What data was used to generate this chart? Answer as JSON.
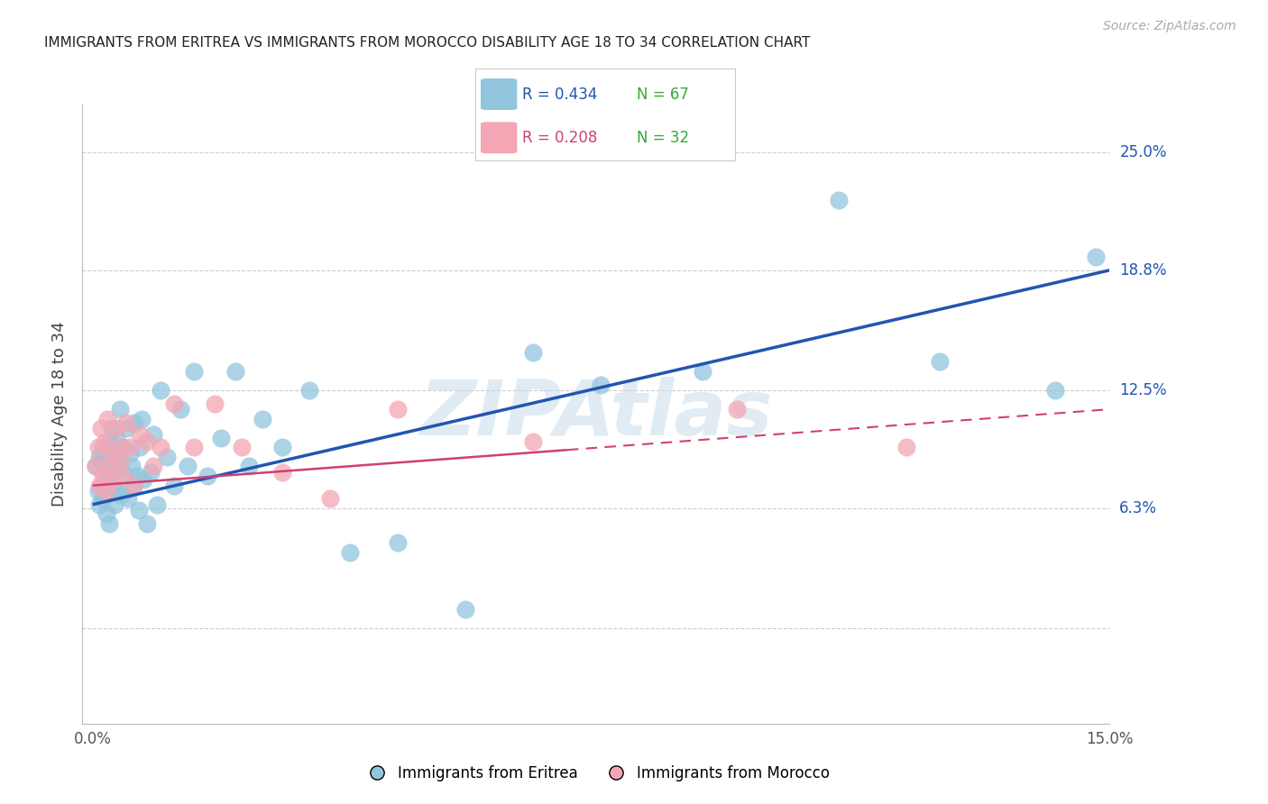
{
  "title": "IMMIGRANTS FROM ERITREA VS IMMIGRANTS FROM MOROCCO DISABILITY AGE 18 TO 34 CORRELATION CHART",
  "source": "Source: ZipAtlas.com",
  "ylabel": "Disability Age 18 to 34",
  "legend_label1": "Immigrants from Eritrea",
  "legend_label2": "Immigrants from Morocco",
  "R1": 0.434,
  "N1": 67,
  "R2": 0.208,
  "N2": 32,
  "color_blue": "#92c5de",
  "color_pink": "#f4a6b4",
  "line_blue": "#2255b0",
  "line_pink": "#d04070",
  "watermark_text": "ZIPAtlas",
  "watermark_color": "#c8dcea",
  "background_color": "#ffffff",
  "ytick_vals": [
    0.0,
    6.3,
    12.5,
    18.8,
    25.0
  ],
  "ytick_right_labels": [
    "",
    "6.3%",
    "12.5%",
    "18.8%",
    "25.0%"
  ],
  "xtick_vals": [
    0.0,
    3.75,
    7.5,
    11.25,
    15.0
  ],
  "xtick_labels": [
    "0.0%",
    "",
    "",
    "",
    "15.0%"
  ],
  "xmin": -0.15,
  "xmax": 15.0,
  "ymin": -5.0,
  "ymax": 27.5,
  "blue_line_x0": 0.0,
  "blue_line_y0": 6.5,
  "blue_line_x1": 15.0,
  "blue_line_y1": 18.8,
  "pink_line_x0": 0.0,
  "pink_line_y0": 7.5,
  "pink_line_x1": 15.0,
  "pink_line_y1": 11.5,
  "pink_solid_end": 7.0,
  "blue_x": [
    0.05,
    0.08,
    0.1,
    0.1,
    0.12,
    0.13,
    0.15,
    0.15,
    0.18,
    0.18,
    0.2,
    0.2,
    0.22,
    0.22,
    0.25,
    0.25,
    0.28,
    0.28,
    0.3,
    0.3,
    0.32,
    0.33,
    0.35,
    0.38,
    0.4,
    0.4,
    0.42,
    0.45,
    0.48,
    0.5,
    0.52,
    0.55,
    0.58,
    0.6,
    0.62,
    0.65,
    0.68,
    0.7,
    0.72,
    0.75,
    0.8,
    0.85,
    0.9,
    0.95,
    1.0,
    1.1,
    1.2,
    1.3,
    1.4,
    1.5,
    1.7,
    1.9,
    2.1,
    2.3,
    2.5,
    2.8,
    3.2,
    3.8,
    4.5,
    5.5,
    6.5,
    7.5,
    9.0,
    11.0,
    12.5,
    14.2,
    14.8
  ],
  "blue_y": [
    8.5,
    7.2,
    9.0,
    6.5,
    8.8,
    7.5,
    9.5,
    6.8,
    8.2,
    7.0,
    9.2,
    6.0,
    8.5,
    7.8,
    9.8,
    5.5,
    8.0,
    10.5,
    7.5,
    9.0,
    8.8,
    6.5,
    10.0,
    7.2,
    8.5,
    11.5,
    7.0,
    9.5,
    8.0,
    10.5,
    6.8,
    9.2,
    8.5,
    7.5,
    10.8,
    8.0,
    6.2,
    9.5,
    11.0,
    7.8,
    5.5,
    8.2,
    10.2,
    6.5,
    12.5,
    9.0,
    7.5,
    11.5,
    8.5,
    13.5,
    8.0,
    10.0,
    13.5,
    8.5,
    11.0,
    9.5,
    12.5,
    4.0,
    4.5,
    1.0,
    14.5,
    12.8,
    13.5,
    22.5,
    14.0,
    12.5,
    19.5
  ],
  "pink_x": [
    0.05,
    0.08,
    0.1,
    0.12,
    0.15,
    0.18,
    0.2,
    0.22,
    0.25,
    0.28,
    0.3,
    0.35,
    0.4,
    0.42,
    0.45,
    0.5,
    0.55,
    0.6,
    0.7,
    0.8,
    0.9,
    1.0,
    1.2,
    1.5,
    1.8,
    2.2,
    2.8,
    3.5,
    4.5,
    6.5,
    9.5,
    12.0
  ],
  "pink_y": [
    8.5,
    9.5,
    7.5,
    10.5,
    8.0,
    9.8,
    7.2,
    11.0,
    8.5,
    9.2,
    7.8,
    10.5,
    8.8,
    9.5,
    8.0,
    10.8,
    9.5,
    7.5,
    10.2,
    9.8,
    8.5,
    9.5,
    11.8,
    9.5,
    11.8,
    9.5,
    8.2,
    6.8,
    11.5,
    9.8,
    11.5,
    9.5
  ]
}
